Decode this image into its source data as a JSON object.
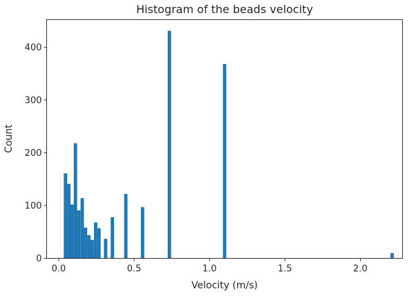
{
  "chart_data": {
    "type": "bar",
    "title": "Histogram of the beads velocity",
    "xlabel": "Velocity (m/s)",
    "ylabel": "Count",
    "xlim": [
      -0.08,
      2.28
    ],
    "ylim": [
      0,
      452
    ],
    "xticks": [
      0.0,
      0.5,
      1.0,
      1.5,
      2.0
    ],
    "xtick_labels": [
      "0.0",
      "0.5",
      "1.0",
      "1.5",
      "2.0"
    ],
    "yticks": [
      0,
      100,
      200,
      300,
      400
    ],
    "ytick_labels": [
      "0",
      "100",
      "200",
      "300",
      "400"
    ],
    "grid": false,
    "bar_color": "#1f77b4",
    "bin_width": 0.0222,
    "bins": [
      {
        "x": 0.045,
        "value": 161
      },
      {
        "x": 0.067,
        "value": 141
      },
      {
        "x": 0.089,
        "value": 102
      },
      {
        "x": 0.111,
        "value": 218
      },
      {
        "x": 0.133,
        "value": 91
      },
      {
        "x": 0.156,
        "value": 114
      },
      {
        "x": 0.178,
        "value": 58
      },
      {
        "x": 0.2,
        "value": 44
      },
      {
        "x": 0.222,
        "value": 35
      },
      {
        "x": 0.245,
        "value": 68
      },
      {
        "x": 0.267,
        "value": 57
      },
      {
        "x": 0.311,
        "value": 37
      },
      {
        "x": 0.356,
        "value": 78
      },
      {
        "x": 0.445,
        "value": 122
      },
      {
        "x": 0.556,
        "value": 97
      },
      {
        "x": 0.734,
        "value": 431
      },
      {
        "x": 1.1,
        "value": 368
      },
      {
        "x": 2.211,
        "value": 10
      }
    ]
  }
}
